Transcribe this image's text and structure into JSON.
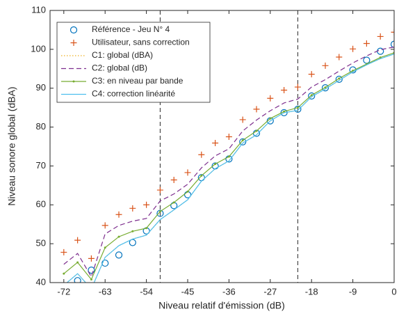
{
  "chart_data": {
    "type": "line",
    "xlabel": "Niveau relatif d'émission (dB)",
    "ylabel": "Niveau sonore global (dBA)",
    "x": [
      -72,
      -69,
      -66,
      -63,
      -60,
      -57,
      -54,
      -51,
      -48,
      -45,
      -42,
      -39,
      -36,
      -33,
      -30,
      -27,
      -24,
      -21,
      -18,
      -15,
      -12,
      -9,
      -6,
      -3,
      0
    ],
    "series": [
      {
        "name": "Référence - Jeu N° 4",
        "color": "#0072bd",
        "marker": "circle",
        "line_style": "none",
        "values": [
          null,
          40.5,
          43.2,
          45.0,
          47.1,
          50.3,
          53.3,
          57.8,
          59.8,
          62.6,
          67.0,
          70.0,
          71.8,
          76.2,
          78.4,
          81.6,
          83.7,
          84.6,
          88.0,
          90.1,
          92.3,
          94.7,
          97.2,
          99.5,
          101.3
        ]
      },
      {
        "name": "Utilisateur, sans correction",
        "color": "#d95319",
        "marker": "plus",
        "line_style": "none",
        "values": [
          47.8,
          50.9,
          46.2,
          54.7,
          57.5,
          59.1,
          60.0,
          63.8,
          66.4,
          68.3,
          72.9,
          75.9,
          77.5,
          81.9,
          84.6,
          87.4,
          89.5,
          90.3,
          93.6,
          95.8,
          98.0,
          100.1,
          101.5,
          103.3,
          104.4
        ]
      },
      {
        "name": "C1: global (dBA)",
        "color": "#edb120",
        "marker": "none",
        "line_style": "dotted",
        "values": [
          39.3,
          42.3,
          38.4,
          46.5,
          49.5,
          51.2,
          52.2,
          56.2,
          58.7,
          61.3,
          66.1,
          69.3,
          71.3,
          75.9,
          78.0,
          81.6,
          83.7,
          84.3,
          87.8,
          89.8,
          92.0,
          94.2,
          96.0,
          97.6,
          98.8
        ]
      },
      {
        "name": "C2: global (dB)",
        "color": "#7e2f8e",
        "marker": "none",
        "line_style": "dashed",
        "values": [
          44.7,
          47.5,
          41.5,
          52.5,
          54.7,
          55.8,
          56.5,
          61.0,
          62.8,
          65.3,
          69.5,
          72.6,
          74.4,
          79.0,
          81.8,
          84.2,
          86.2,
          87.2,
          90.3,
          92.2,
          94.4,
          96.5,
          98.3,
          99.9,
          100.6
        ]
      },
      {
        "name": "C3: en niveau par bande",
        "color": "#77ac30",
        "marker": "dot",
        "line_style": "solid",
        "values": [
          42.3,
          45.2,
          40.8,
          49.0,
          51.8,
          53.2,
          54.0,
          58.3,
          60.6,
          63.4,
          67.5,
          70.5,
          72.4,
          76.6,
          79.0,
          82.2,
          84.0,
          85.0,
          88.2,
          90.2,
          92.5,
          94.5,
          96.2,
          97.9,
          99.1
        ]
      },
      {
        "name": "C4: correction linéarité",
        "color": "#4dbeee",
        "marker": "none",
        "line_style": "solid",
        "values": [
          39.3,
          42.3,
          38.4,
          46.5,
          49.5,
          51.2,
          52.2,
          56.2,
          58.7,
          61.3,
          66.1,
          69.3,
          71.3,
          75.9,
          78.0,
          81.6,
          83.7,
          84.3,
          87.8,
          89.8,
          92.0,
          94.2,
          96.0,
          97.6,
          98.8
        ]
      }
    ],
    "vlines": [
      -51,
      -21
    ],
    "xlim": [
      -75,
      0
    ],
    "xticks": [
      -72,
      -63,
      -54,
      -45,
      -36,
      -27,
      -18,
      -9,
      0
    ],
    "ylim": [
      40,
      110
    ],
    "yticks": [
      40,
      50,
      60,
      70,
      80,
      90,
      100,
      110
    ],
    "grid": false,
    "legend": "upper left"
  }
}
